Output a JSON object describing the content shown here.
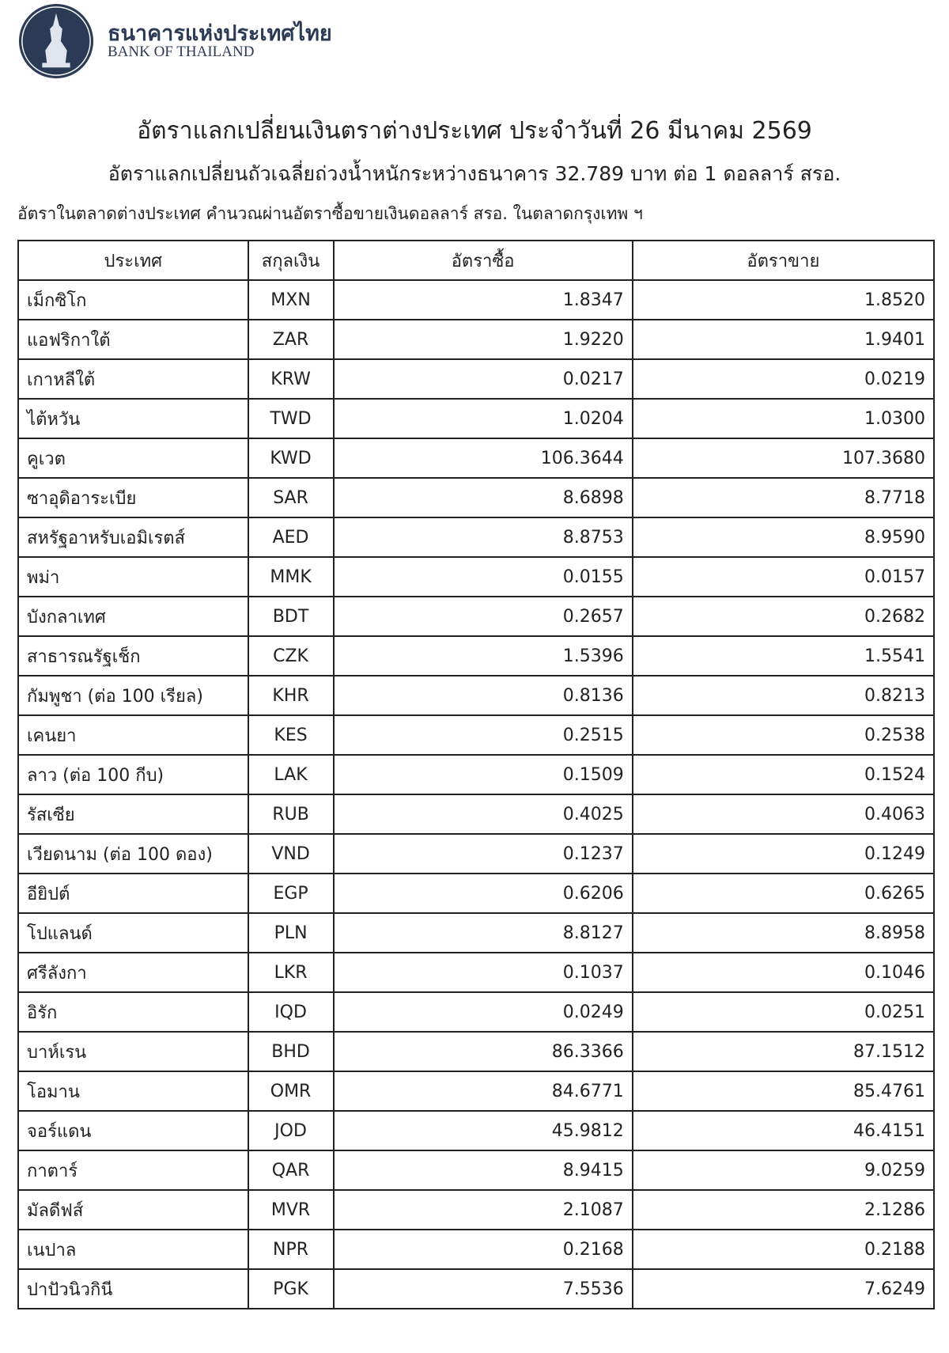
{
  "header": {
    "bank_name_th": "ธนาคารแห่งประเทศไทย",
    "bank_name_en": "BANK OF THAILAND",
    "brand_color": "#2b3a55"
  },
  "title": "อัตราแลกเปลี่ยนเงินตราต่างประเทศ ประจำวันที่ 26 มีนาคม 2569",
  "subtitle": "อัตราแลกเปลี่ยนถัวเฉลี่ยถ่วงน้ำหนักระหว่างธนาคาร 32.789 บาท ต่อ 1 ดอลลาร์ สรอ.",
  "note": "อัตราในตลาดต่างประเทศ คำนวณผ่านอัตราซื้อขายเงินดอลลาร์ สรอ. ในตลาดกรุงเทพ ฯ",
  "table": {
    "headers": [
      "ประเทศ",
      "สกุลเงิน",
      "อัตราซื้อ",
      "อัตราขาย"
    ],
    "rows": [
      [
        "เม็กซิโก",
        "MXN",
        "1.8347",
        "1.8520"
      ],
      [
        "แอฟริกาใต้",
        "ZAR",
        "1.9220",
        "1.9401"
      ],
      [
        "เกาหลีใต้",
        "KRW",
        "0.0217",
        "0.0219"
      ],
      [
        "ไต้หวัน",
        "TWD",
        "1.0204",
        "1.0300"
      ],
      [
        "คูเวต",
        "KWD",
        "106.3644",
        "107.3680"
      ],
      [
        "ซาอุดิอาระเบีย",
        "SAR",
        "8.6898",
        "8.7718"
      ],
      [
        "สหรัฐอาหรับเอมิเรตส์",
        "AED",
        "8.8753",
        "8.9590"
      ],
      [
        "พม่า",
        "MMK",
        "0.0155",
        "0.0157"
      ],
      [
        "บังกลาเทศ",
        "BDT",
        "0.2657",
        "0.2682"
      ],
      [
        "สาธารณรัฐเช็ก",
        "CZK",
        "1.5396",
        "1.5541"
      ],
      [
        "กัมพูชา (ต่อ 100 เรียล)",
        "KHR",
        "0.8136",
        "0.8213"
      ],
      [
        "เคนยา",
        "KES",
        "0.2515",
        "0.2538"
      ],
      [
        "ลาว (ต่อ 100 กีบ)",
        "LAK",
        "0.1509",
        "0.1524"
      ],
      [
        "รัสเซีย",
        "RUB",
        "0.4025",
        "0.4063"
      ],
      [
        "เวียดนาม (ต่อ 100 ดอง)",
        "VND",
        "0.1237",
        "0.1249"
      ],
      [
        "อียิปต์",
        "EGP",
        "0.6206",
        "0.6265"
      ],
      [
        "โปแลนด์",
        "PLN",
        "8.8127",
        "8.8958"
      ],
      [
        "ศรีลังกา",
        "LKR",
        "0.1037",
        "0.1046"
      ],
      [
        "อิรัก",
        "IQD",
        "0.0249",
        "0.0251"
      ],
      [
        "บาห์เรน",
        "BHD",
        "86.3366",
        "87.1512"
      ],
      [
        "โอมาน",
        "OMR",
        "84.6771",
        "85.4761"
      ],
      [
        "จอร์แดน",
        "JOD",
        "45.9812",
        "46.4151"
      ],
      [
        "กาตาร์",
        "QAR",
        "8.9415",
        "9.0259"
      ],
      [
        "มัลดีฟส์",
        "MVR",
        "2.1087",
        "2.1286"
      ],
      [
        "เนปาล",
        "NPR",
        "0.2168",
        "0.2188"
      ],
      [
        "ปาปัวนิวกินี",
        "PGK",
        "7.5536",
        "7.6249"
      ]
    ]
  }
}
